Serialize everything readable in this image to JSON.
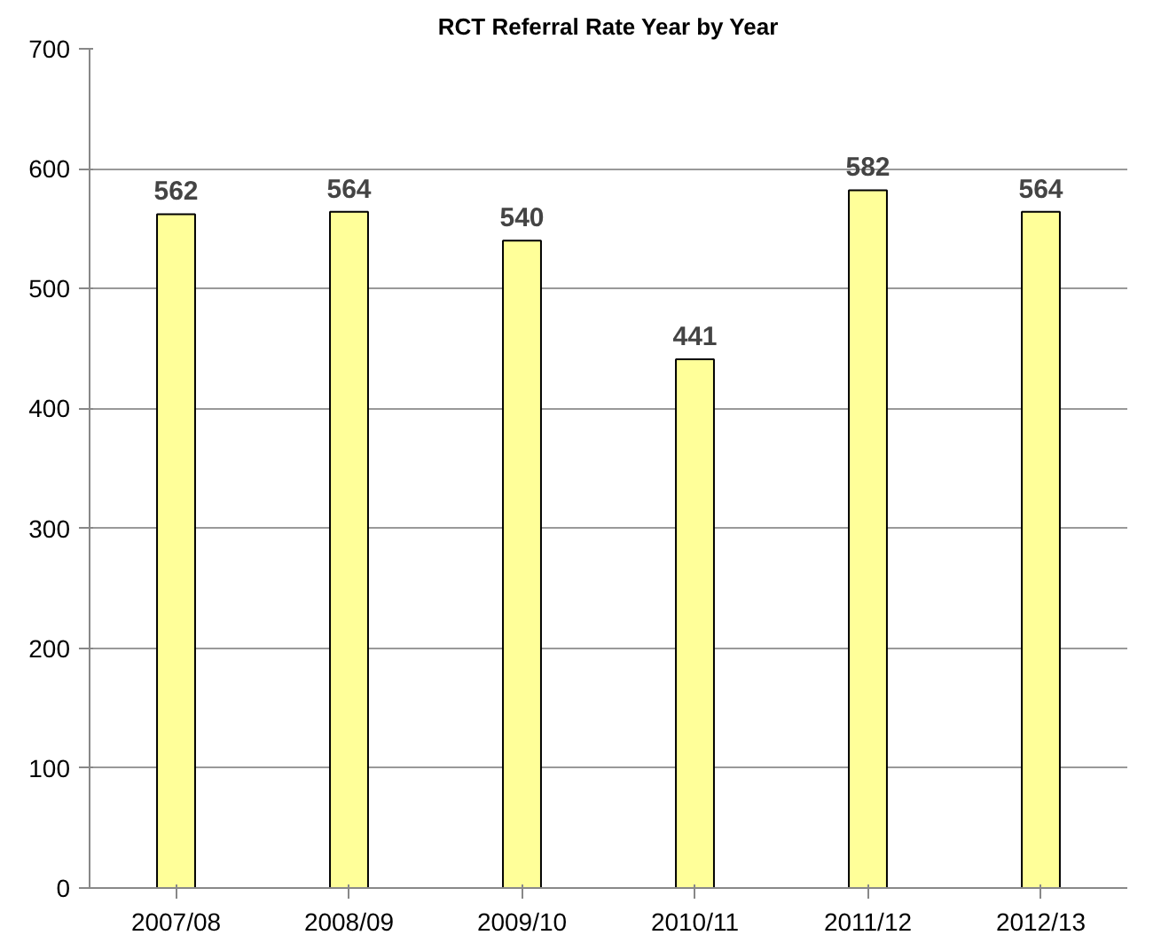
{
  "chart_data": {
    "type": "bar",
    "title": "RCT Referral Rate Year by Year",
    "categories": [
      "2007/08",
      "2008/09",
      "2009/10",
      "2010/11",
      "2011/12",
      "2012/13"
    ],
    "values": [
      562,
      564,
      540,
      441,
      582,
      564
    ],
    "color": "#ffff99",
    "ylim": [
      0,
      700
    ],
    "yticks": [
      0,
      100,
      200,
      300,
      400,
      500,
      600,
      700
    ],
    "grid": "y",
    "data_labels": true
  }
}
